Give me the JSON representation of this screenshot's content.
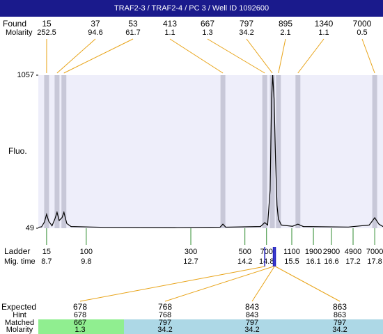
{
  "chart_data": {
    "type": "line",
    "title": "TRAF2-3 / TRAF2-4 / PC 3 / Well ID 1092600",
    "y_label": "Fluo.",
    "xlim": [
      8.47,
      18.03
    ],
    "ylim": [
      49,
      1057
    ],
    "yticks": [
      1057,
      49
    ],
    "x": [
      8.47,
      8.56,
      8.64,
      8.7,
      8.76,
      8.85,
      8.93,
      8.99,
      9.05,
      9.13,
      9.18,
      9.26,
      9.38,
      10.3,
      12.24,
      13.51,
      13.59,
      13.67,
      14.63,
      14.75,
      14.83,
      14.9,
      14.94,
      14.97,
      15.01,
      15.05,
      15.09,
      15.13,
      15.21,
      15.52,
      15.67,
      15.82,
      17.07,
      17.65,
      17.8,
      17.92,
      18.03
    ],
    "series": [
      {
        "color": "#000000",
        "values": [
          55,
          58,
          90,
          141,
          95,
          65,
          110,
          154,
          100,
          120,
          154,
          80,
          60,
          55,
          53,
          56,
          76,
          56,
          60,
          86,
          70,
          300,
          900,
          1057,
          900,
          500,
          200,
          110,
          70,
          62,
          76,
          60,
          57,
          70,
          118,
          75,
          60
        ]
      }
    ],
    "found": {
      "label": "Found",
      "molarity_label": "Molarity",
      "peaks": [
        {
          "size": 15,
          "molarity": 252.5,
          "time": 8.7
        },
        {
          "size": 37,
          "molarity": 94.6,
          "time": 8.99
        },
        {
          "size": 53,
          "molarity": 61.7,
          "time": 9.18
        },
        {
          "size": 413,
          "molarity": 1.1,
          "time": 13.59
        },
        {
          "size": 667,
          "molarity": 1.3,
          "time": 14.75
        },
        {
          "size": 797,
          "molarity": 34.2,
          "time": 14.96
        },
        {
          "size": 895,
          "molarity": 2.1,
          "time": 15.13
        },
        {
          "size": 1340,
          "molarity": 1.1,
          "time": 15.67
        },
        {
          "size": 7000,
          "molarity": 0.5,
          "time": 17.8
        }
      ]
    },
    "ladder": {
      "label": "Ladder",
      "time_label": "Mig. time",
      "sizes": [
        15,
        100,
        300,
        500,
        700,
        1100,
        1900,
        2900,
        4900,
        7000
      ],
      "times": [
        8.7,
        9.8,
        12.7,
        14.2,
        14.8,
        15.5,
        16.1,
        16.6,
        17.2,
        17.8
      ]
    },
    "expected": {
      "labels": [
        "Expected",
        "Hint",
        "Matched",
        "Molarity"
      ],
      "columns": [
        {
          "expected": 678,
          "hint": 678,
          "matched": 667,
          "molarity": 1.3
        },
        {
          "expected": 768,
          "hint": 768,
          "matched": 797,
          "molarity": 34.2
        },
        {
          "expected": 843,
          "hint": 843,
          "matched": 797,
          "molarity": 34.2
        },
        {
          "expected": 863,
          "hint": 863,
          "matched": 797,
          "molarity": 34.2
        }
      ]
    }
  }
}
